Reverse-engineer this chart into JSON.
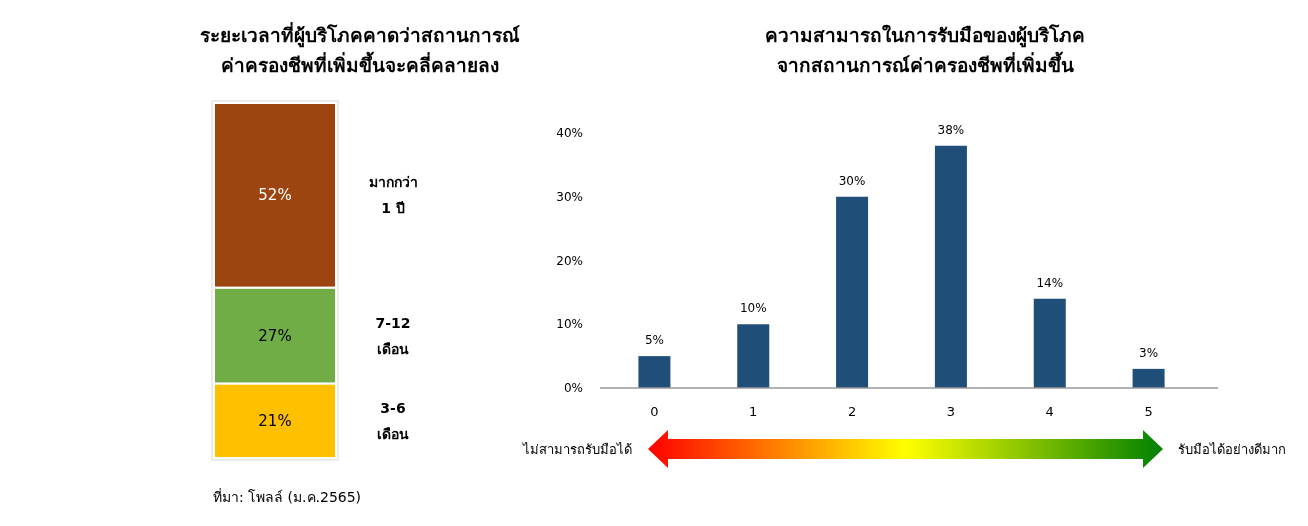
{
  "chart_data": [
    {
      "type": "bar",
      "stacked": true,
      "title": "ระยะเวลาที่ผู้บริโภคคาดว่าสถานการณ์\nค่าครองชีพที่เพิ่มขึ้นจะคลี่คลายลง",
      "categories": [
        null
      ],
      "series": [
        {
          "name": "3-6 เดือน",
          "color": "#ffc000",
          "values": [
            21
          ],
          "value_labels": [
            "21%"
          ]
        },
        {
          "name": "7-12 เดือน",
          "color": "#70ad47",
          "values": [
            27
          ],
          "value_labels": [
            "27%"
          ]
        },
        {
          "name": "มากกว่า 1 ปี",
          "color": "#9c4510",
          "values": [
            52
          ],
          "value_labels": [
            "52%"
          ]
        }
      ],
      "annotations": [
        "ที่มา: โพลล์ (ม.ค.2565)"
      ]
    },
    {
      "type": "bar",
      "title": "ความสามารถในการรับมือของผู้บริโภค\nจากสถานการณ์ค่าครองชีพที่เพิ่มขึ้น",
      "categories": [
        "0",
        "1",
        "2",
        "3",
        "4",
        "5"
      ],
      "values": [
        5,
        10,
        30,
        38,
        14,
        3
      ],
      "color": "#1f4e79",
      "value_labels": [
        "5%",
        "10%",
        "30%",
        "38%",
        "14%",
        "3%"
      ],
      "ylim": [
        0,
        40
      ],
      "yticks": [
        {
          "value": 0,
          "label": "0%"
        },
        {
          "value": 10,
          "label": "10%"
        },
        {
          "value": 20,
          "label": "20%"
        },
        {
          "value": 30,
          "label": "30%"
        },
        {
          "value": 40,
          "label": "40%"
        }
      ],
      "grid": false,
      "annotations": [
        "ไม่สามารถรับมือได้",
        "รับมือได้อย่างดีมาก"
      ]
    }
  ]
}
